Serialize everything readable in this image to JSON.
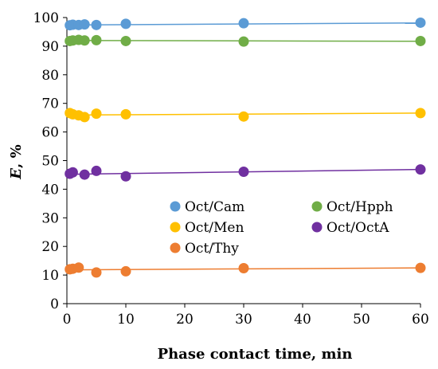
{
  "chart_data": {
    "type": "scatter",
    "xlabel": "Phase contact time, min",
    "ylabel_main": "E",
    "ylabel_unit": ", %",
    "xlim": [
      0,
      60
    ],
    "ylim": [
      0,
      100
    ],
    "x_ticks": [
      0,
      10,
      20,
      30,
      40,
      50,
      60
    ],
    "y_ticks": [
      0,
      10,
      20,
      30,
      40,
      50,
      60,
      70,
      80,
      90,
      100
    ],
    "grid": false,
    "legend_position": "center-right",
    "series": [
      {
        "name": "Oct/Cam",
        "color": "#5B9BD5",
        "x": [
          0.5,
          1,
          2,
          3,
          5,
          10,
          30,
          60
        ],
        "y": [
          97.3,
          97.5,
          97.4,
          97.6,
          97.4,
          97.8,
          98.0,
          98.2
        ],
        "trend": [
          97.4,
          98.1
        ]
      },
      {
        "name": "Oct/Hpph",
        "color": "#70AD47",
        "x": [
          0.5,
          1,
          2,
          3,
          5,
          10,
          30,
          60
        ],
        "y": [
          91.8,
          92.0,
          92.2,
          92.0,
          92.1,
          91.8,
          91.6,
          91.8
        ],
        "trend": [
          92.0,
          91.7
        ]
      },
      {
        "name": "Oct/Men",
        "color": "#FFC000",
        "x": [
          0.5,
          1,
          2,
          3,
          5,
          10,
          30,
          60
        ],
        "y": [
          66.6,
          66.2,
          65.8,
          65.2,
          66.4,
          66.2,
          65.4,
          66.6
        ],
        "trend": [
          65.9,
          66.6
        ]
      },
      {
        "name": "Oct/OctA",
        "color": "#7030A0",
        "x": [
          0.5,
          1,
          3,
          5,
          10,
          30,
          60
        ],
        "y": [
          45.4,
          45.9,
          45.1,
          46.4,
          44.5,
          46.1,
          46.9
        ],
        "trend": [
          45.2,
          46.9
        ]
      },
      {
        "name": "Oct/Thy",
        "color": "#ED7D31",
        "x": [
          0.5,
          1,
          2,
          5,
          10,
          30,
          60
        ],
        "y": [
          12.0,
          12.2,
          12.6,
          10.9,
          11.3,
          12.4,
          12.5
        ],
        "trend": [
          11.8,
          12.5
        ]
      }
    ]
  }
}
